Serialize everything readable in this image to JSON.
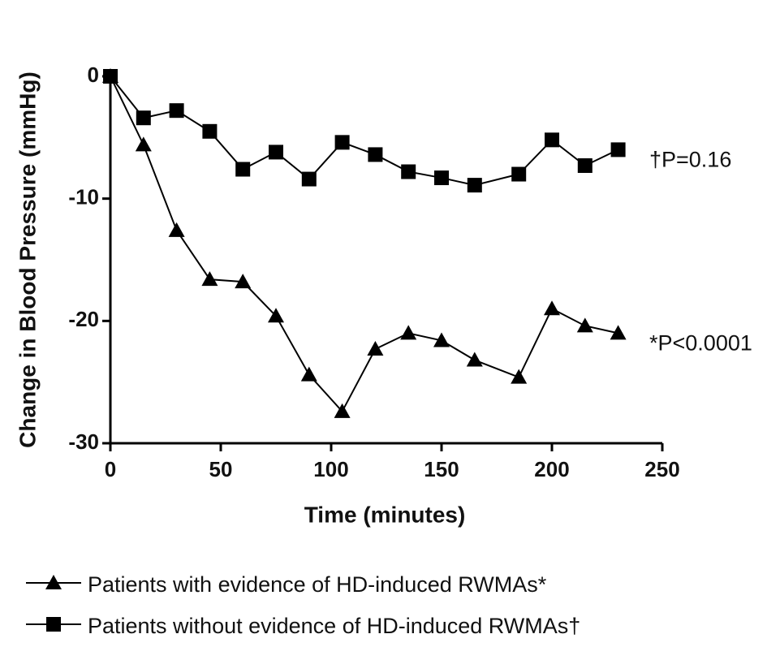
{
  "chart_data": {
    "type": "line",
    "xlabel": "Time (minutes)",
    "ylabel": "Change in Blood Pressure (mmHg)",
    "xlim": [
      0,
      250
    ],
    "xticks": [
      0,
      50,
      100,
      150,
      200,
      250
    ],
    "ylim": [
      -30,
      0
    ],
    "yticks": [
      0,
      -10,
      -20,
      -30
    ],
    "series": [
      {
        "name": "Patients with evidence of HD-induced RWMAs*",
        "color": "#000000",
        "marker": "triangle",
        "x": [
          0,
          15,
          30,
          45,
          60,
          75,
          90,
          105,
          120,
          135,
          150,
          165,
          185,
          200,
          215,
          230
        ],
        "values": [
          0,
          -5.6,
          -12.6,
          -16.6,
          -16.8,
          -19.6,
          -24.4,
          -27.4,
          -22.3,
          -21.0,
          -21.6,
          -23.2,
          -24.6,
          -19.0,
          -20.4,
          -21.0
        ],
        "annotation": "*P<0.0001"
      },
      {
        "name": "Patients without evidence of HD-induced RWMAs†",
        "color": "#000000",
        "marker": "square",
        "x": [
          0,
          15,
          30,
          45,
          60,
          75,
          90,
          105,
          120,
          135,
          150,
          165,
          185,
          200,
          215,
          230
        ],
        "values": [
          0,
          -3.4,
          -2.8,
          -4.5,
          -7.6,
          -6.2,
          -8.4,
          -5.4,
          -6.4,
          -7.8,
          -8.3,
          -8.9,
          -8.0,
          -5.2,
          -7.3,
          -6.0
        ],
        "annotation": "†P=0.16"
      }
    ]
  }
}
